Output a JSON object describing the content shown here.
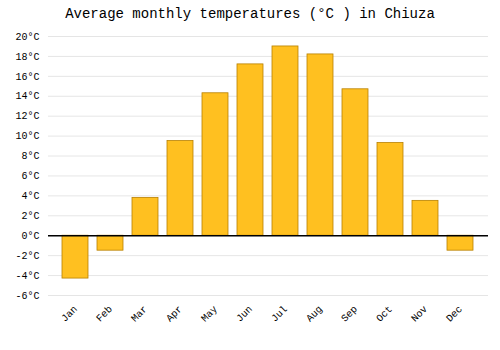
{
  "chart_data": {
    "type": "bar",
    "title": "Average monthly temperatures (°C ) in Chiuza",
    "categories": [
      "Jan",
      "Feb",
      "Mar",
      "Apr",
      "May",
      "Jun",
      "Jul",
      "Aug",
      "Sep",
      "Oct",
      "Nov",
      "Dec"
    ],
    "values": [
      -4.3,
      -1.5,
      3.8,
      9.5,
      14.3,
      17.2,
      19.0,
      18.2,
      14.7,
      9.3,
      3.5,
      -1.5
    ],
    "color": "#FFC020",
    "ylim": [
      -6,
      20
    ],
    "yticks": [
      {
        "value": -6,
        "label": "-6°C"
      },
      {
        "value": -4,
        "label": "-4°C"
      },
      {
        "value": -2,
        "label": "-2°C"
      },
      {
        "value": 0,
        "label": "0°C"
      },
      {
        "value": 2,
        "label": "2°C"
      },
      {
        "value": 4,
        "label": "4°C"
      },
      {
        "value": 6,
        "label": "6°C"
      },
      {
        "value": 8,
        "label": "8°C"
      },
      {
        "value": 10,
        "label": "10°C"
      },
      {
        "value": 12,
        "label": "12°C"
      },
      {
        "value": 14,
        "label": "14°C"
      },
      {
        "value": 16,
        "label": "16°C"
      },
      {
        "value": 18,
        "label": "18°C"
      },
      {
        "value": 20,
        "label": "20°C"
      }
    ],
    "grid": true
  }
}
